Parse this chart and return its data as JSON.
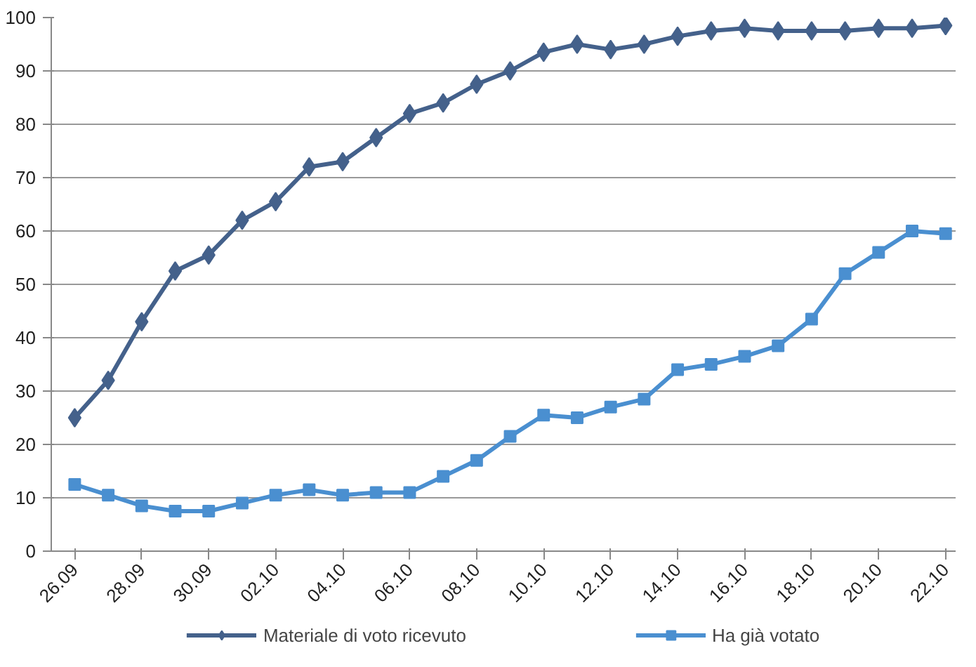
{
  "chart_data": {
    "type": "line",
    "categories": [
      "26.09",
      null,
      "28.09",
      null,
      "30.09",
      null,
      "02.10",
      null,
      "04.10",
      null,
      "06.10",
      null,
      "08.10",
      null,
      "10.10",
      null,
      "12.10",
      null,
      "14.10",
      null,
      "16.10",
      null,
      "18.10",
      null,
      "20.10",
      null,
      "22.10"
    ],
    "series": [
      {
        "name": "Materiale di voto ricevuto",
        "color": "#44618b",
        "marker": "diamond",
        "values": [
          25,
          32,
          43,
          52.5,
          55.5,
          62,
          65.5,
          72,
          73,
          77.5,
          82,
          84,
          87.5,
          90,
          93.5,
          95,
          94,
          95,
          96.5,
          97.5,
          98,
          97.5,
          97.5,
          97.5,
          98,
          98,
          98.5
        ]
      },
      {
        "name": "Ha già votato",
        "color": "#4a8fd0",
        "marker": "square",
        "values": [
          12.5,
          10.5,
          8.5,
          7.5,
          7.5,
          9,
          10.5,
          11.5,
          10.5,
          11,
          11,
          14,
          17,
          21.5,
          25.5,
          25,
          27,
          28.5,
          34,
          35,
          36.5,
          38.5,
          43.5,
          52,
          56,
          60,
          59.5
        ]
      }
    ],
    "ylim": [
      0,
      100
    ],
    "yticks": [
      0,
      10,
      20,
      30,
      40,
      50,
      60,
      70,
      80,
      90,
      100
    ],
    "grid": "y",
    "legend": "bottom",
    "line_style": "solid"
  }
}
